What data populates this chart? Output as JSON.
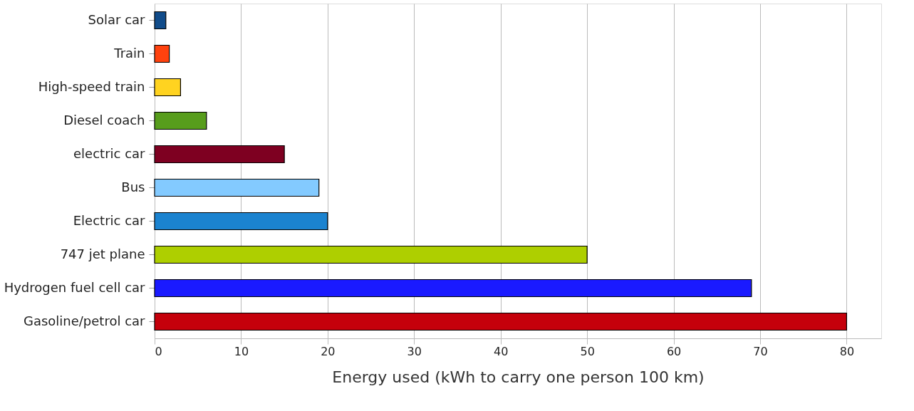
{
  "chart_data": {
    "type": "bar",
    "orientation": "horizontal",
    "categories": [
      "Solar car",
      "Train",
      "High-speed train",
      "Diesel coach",
      "electric car",
      "Bus",
      "Electric car",
      "747 jet plane",
      "Hydrogen fuel cell car",
      "Gasoline/petrol car"
    ],
    "values": [
      1.3,
      1.7,
      3,
      6,
      15,
      19,
      20,
      50,
      69,
      80
    ],
    "colors": [
      "#114c8a",
      "#ff420e",
      "#ffd320",
      "#579d1c",
      "#7e0021",
      "#83caff",
      "#1b83d0",
      "#aecf00",
      "#1a1aff",
      "#c5000b"
    ],
    "xlabel": "Energy used (kWh to carry one person 100 km)",
    "xlim": [
      0,
      84
    ],
    "xticks": [
      0,
      10,
      20,
      30,
      40,
      50,
      60,
      70,
      80
    ],
    "grid": "x"
  }
}
